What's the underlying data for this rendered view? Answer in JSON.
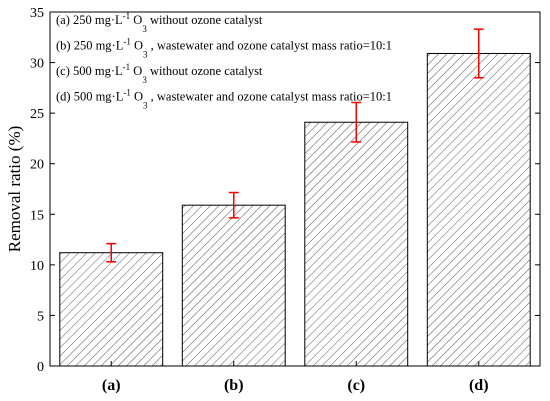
{
  "chart_data": {
    "type": "bar",
    "y_label": "Removal ratio (%)",
    "categories": [
      "(a)",
      "(b)",
      "(c)",
      "(d)"
    ],
    "values": [
      11.2,
      15.9,
      24.1,
      30.9
    ],
    "errors": [
      0.9,
      1.25,
      1.95,
      2.4
    ],
    "color": "#444444",
    "error_color": "#ff0000",
    "ylim": [
      0,
      35
    ],
    "yticks": [
      0,
      5,
      10,
      15,
      20,
      25,
      30,
      35
    ],
    "annotations": [
      [
        {
          "text": "(a) 250 mg·L"
        },
        {
          "text": "-1",
          "shift": "sup"
        },
        {
          "text": " O"
        },
        {
          "text": "3",
          "shift": "sub"
        },
        {
          "text": " without ozone catalyst"
        }
      ],
      [
        {
          "text": "(b) 250 mg·L"
        },
        {
          "text": "-1",
          "shift": "sup"
        },
        {
          "text": " O"
        },
        {
          "text": "3",
          "shift": "sub"
        },
        {
          "text": " , wastewater and ozone catalyst mass ratio=10:1"
        }
      ],
      [
        {
          "text": "(c) 500 mg·L"
        },
        {
          "text": "-1",
          "shift": "sup"
        },
        {
          "text": " O"
        },
        {
          "text": "3",
          "shift": "sub"
        },
        {
          "text": " without ozone catalyst"
        }
      ],
      [
        {
          "text": "(d) 500 mg·L"
        },
        {
          "text": "-1",
          "shift": "sup"
        },
        {
          "text": " O"
        },
        {
          "text": "3",
          "shift": "sub"
        },
        {
          "text": " , wastewater and ozone catalyst mass ratio=10:1"
        }
      ]
    ]
  }
}
